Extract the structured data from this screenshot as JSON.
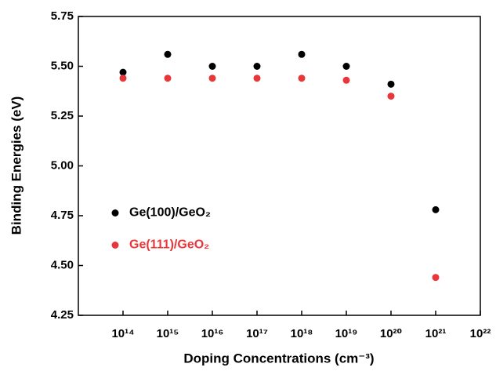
{
  "chart_data": {
    "type": "scatter",
    "xlabel": "Doping Concentrations (cm⁻³)",
    "ylabel": "Binding Energies (eV)",
    "x": [
      100000000000000.0,
      1000000000000000.0,
      1e+16,
      1e+17,
      1e+18,
      1e+19,
      1e+20,
      1e+21
    ],
    "xscale": "log",
    "xlim": [
      10000000000000.0,
      1e+22
    ],
    "xticks": [
      {
        "value": 100000000000000.0,
        "label": "10¹⁴"
      },
      {
        "value": 1000000000000000.0,
        "label": "10¹⁵"
      },
      {
        "value": 1e+16,
        "label": "10¹⁶"
      },
      {
        "value": 1e+17,
        "label": "10¹⁷"
      },
      {
        "value": 1e+18,
        "label": "10¹⁸"
      },
      {
        "value": 1e+19,
        "label": "10¹⁹"
      },
      {
        "value": 1e+20,
        "label": "10²⁰"
      },
      {
        "value": 1e+21,
        "label": "10²¹"
      },
      {
        "value": 1e+22,
        "label": "10²²"
      }
    ],
    "ylim": [
      4.25,
      5.75
    ],
    "yticks": [
      4.25,
      {
        "value": 4.5,
        "label": "4.50"
      },
      4.75,
      {
        "value": 5.0,
        "label": "5.00"
      },
      5.25,
      {
        "value": 5.5,
        "label": "5.50"
      },
      5.75
    ],
    "legend": "left",
    "series": [
      {
        "name": "Ge(100)/GeO₂",
        "color": "#000000",
        "values": [
          5.47,
          5.56,
          5.5,
          5.5,
          5.56,
          5.5,
          5.41,
          4.78
        ]
      },
      {
        "name": "Ge(111)/GeO₂",
        "color": "#e8373a",
        "values": [
          5.44,
          5.44,
          5.44,
          5.44,
          5.44,
          5.43,
          5.35,
          4.44
        ]
      }
    ]
  }
}
